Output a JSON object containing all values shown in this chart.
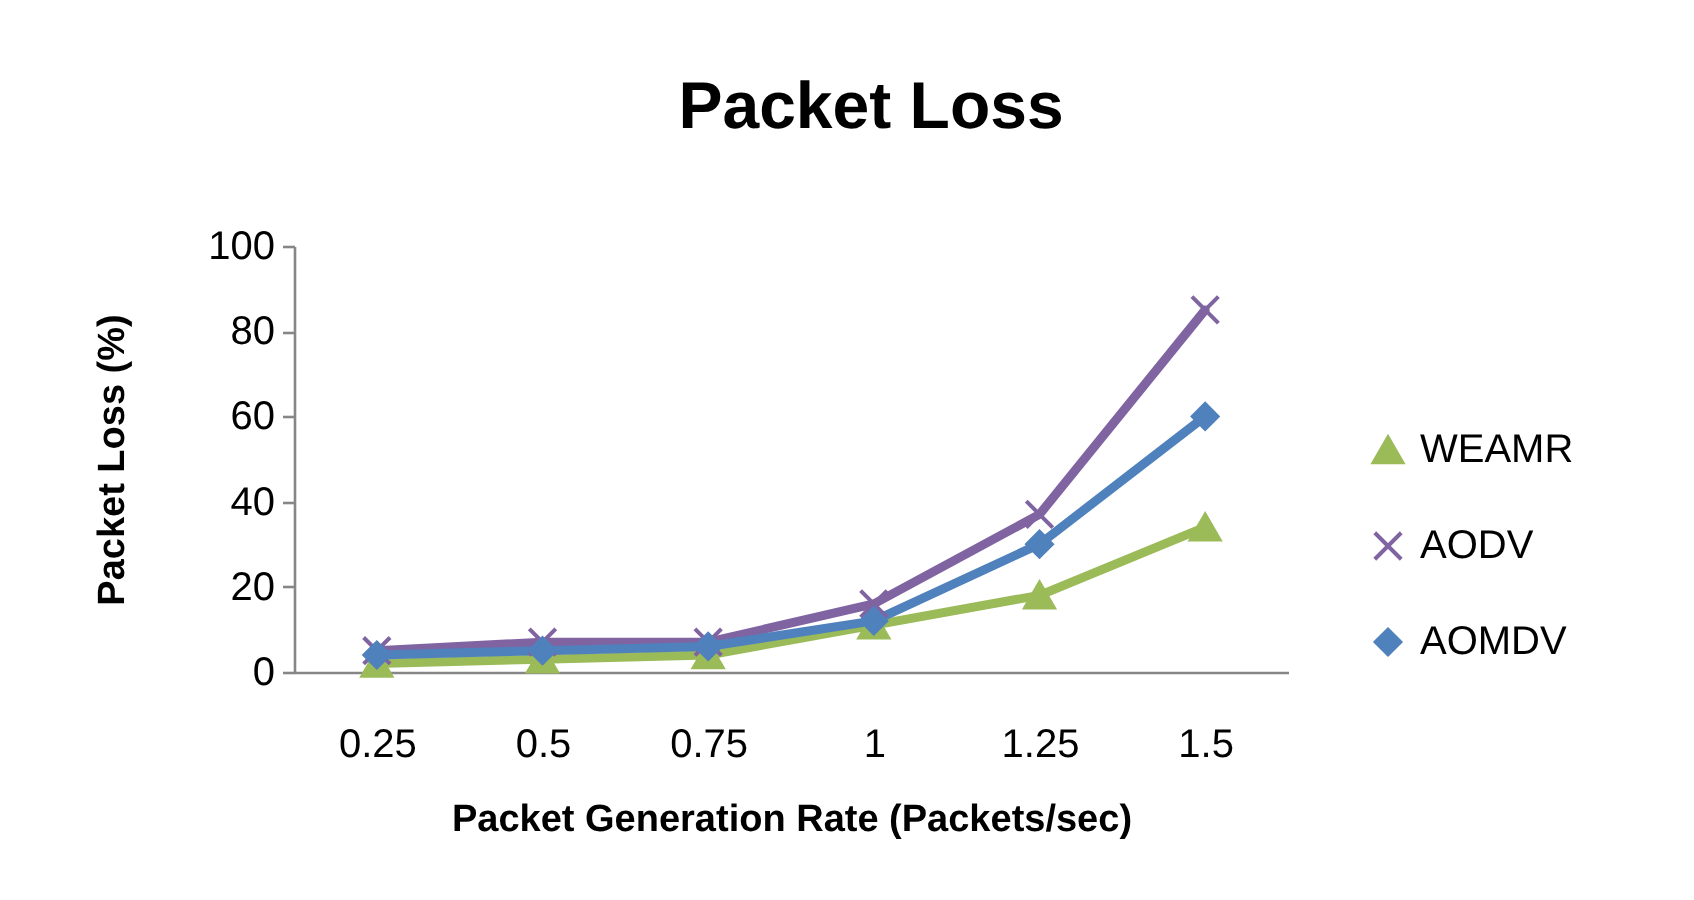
{
  "chart_data": {
    "type": "line",
    "title": "Packet Loss",
    "xlabel": "Packet Generation Rate (Packets/sec)",
    "ylabel": "Packet Loss (%)",
    "categories": [
      "0.25",
      "0.5",
      "0.75",
      "1",
      "1.25",
      "1.5"
    ],
    "series": [
      {
        "name": "WEAMR",
        "color": "#9bbb59",
        "marker": "triangle",
        "values": [
          2,
          3,
          4,
          11,
          18,
          34
        ]
      },
      {
        "name": "AODV",
        "color": "#8064a2",
        "marker": "cross",
        "values": [
          5,
          7,
          7,
          16,
          37,
          85
        ]
      },
      {
        "name": "AOMDV",
        "color": "#4f81bd",
        "marker": "diamond",
        "values": [
          4,
          5,
          6,
          12,
          30,
          60
        ]
      }
    ],
    "ylim": [
      0,
      100
    ],
    "yticks": [
      0,
      20,
      40,
      60,
      80,
      100
    ],
    "grid": false,
    "legend": "right",
    "line_style": "solid"
  }
}
